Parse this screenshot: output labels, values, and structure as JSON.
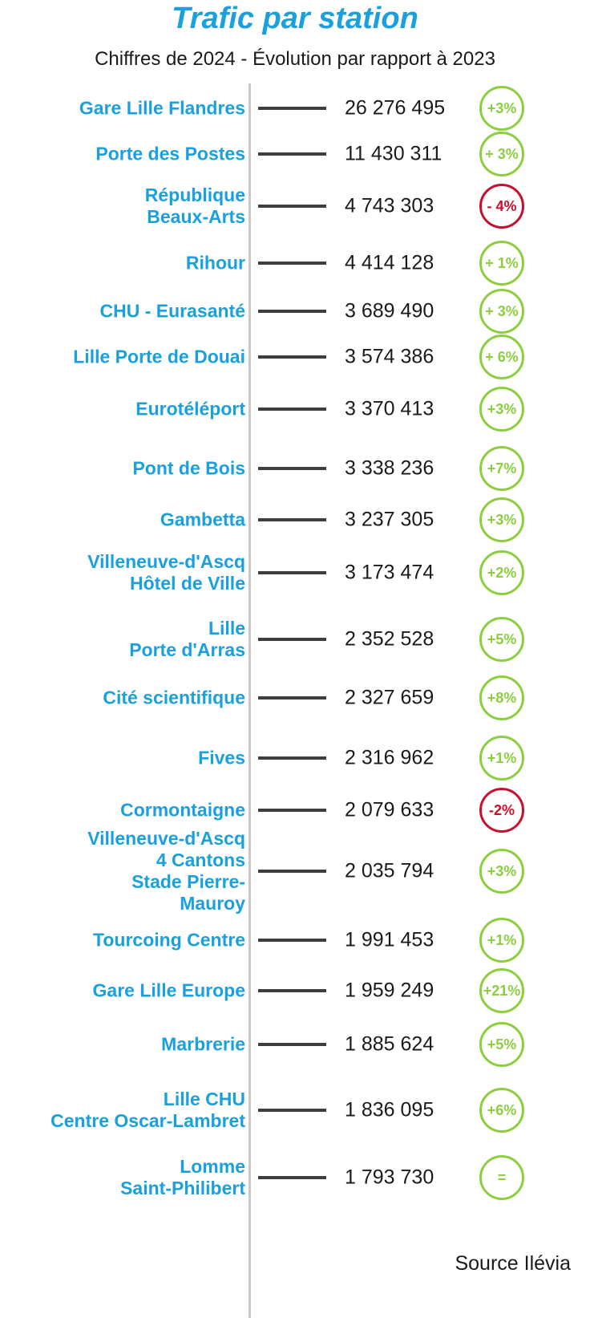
{
  "title": "Trafic par station",
  "subtitle": "Chiffres de 2024 - Évolution par rapport à 2023",
  "source": "Source Ilévia",
  "colors": {
    "title": "#1aa0dd",
    "positive": "#8ccf3e",
    "negative": "#c8102e",
    "dash": "#3e3e3e"
  },
  "chart_data": {
    "type": "table",
    "title": "Trafic par station",
    "subtitle": "Chiffres de 2024 - Évolution par rapport à 2023",
    "rows": [
      {
        "station": [
          "Gare Lille Flandres"
        ],
        "value": "26 276 495",
        "change": "+3%",
        "trend": "up"
      },
      {
        "station": [
          "Porte des Postes"
        ],
        "value": "11 430 311",
        "change": "+ 3%",
        "trend": "up"
      },
      {
        "station": [
          "République",
          "Beaux-Arts"
        ],
        "value": "4 743 303",
        "change": "- 4%",
        "trend": "down"
      },
      {
        "station": [
          "Rihour"
        ],
        "value": "4 414 128",
        "change": "+ 1%",
        "trend": "up"
      },
      {
        "station": [
          "CHU - Eurasanté"
        ],
        "value": "3 689 490",
        "change": "+ 3%",
        "trend": "up"
      },
      {
        "station": [
          "Lille Porte de Douai"
        ],
        "value": "3 574 386",
        "change": "+ 6%",
        "trend": "up"
      },
      {
        "station": [
          "Eurotéléport"
        ],
        "value": "3 370 413",
        "change": "+3%",
        "trend": "up"
      },
      {
        "station": [
          "Pont de Bois"
        ],
        "value": "3 338 236",
        "change": "+7%",
        "trend": "up"
      },
      {
        "station": [
          "Gambetta"
        ],
        "value": "3 237 305",
        "change": "+3%",
        "trend": "up"
      },
      {
        "station": [
          "Villeneuve-d'Ascq",
          "Hôtel de Ville"
        ],
        "value": "3 173 474",
        "change": "+2%",
        "trend": "up"
      },
      {
        "station": [
          "Lille",
          "Porte d'Arras"
        ],
        "value": "2 352 528",
        "change": "+5%",
        "trend": "up"
      },
      {
        "station": [
          "Cité scientifique"
        ],
        "value": "2 327 659",
        "change": "+8%",
        "trend": "up"
      },
      {
        "station": [
          "Fives"
        ],
        "value": "2 316 962",
        "change": "+1%",
        "trend": "up"
      },
      {
        "station": [
          "Cormontaigne"
        ],
        "value": "2 079 633",
        "change": "-2%",
        "trend": "down"
      },
      {
        "station": [
          "Villeneuve-d'Ascq",
          "4 Cantons",
          "Stade Pierre-",
          "Mauroy"
        ],
        "value": "2 035 794",
        "change": "+3%",
        "trend": "up"
      },
      {
        "station": [
          "Tourcoing Centre"
        ],
        "value": "1 991 453",
        "change": "+1%",
        "trend": "up"
      },
      {
        "station": [
          "Gare Lille Europe"
        ],
        "value": "1 959 249",
        "change": "+21%",
        "trend": "up"
      },
      {
        "station": [
          "Marbrerie"
        ],
        "value": "1 885 624",
        "change": "+5%",
        "trend": "up"
      },
      {
        "station": [
          "Lille CHU",
          "Centre Oscar-Lambret"
        ],
        "value": "1 836 095",
        "change": "+6%",
        "trend": "up"
      },
      {
        "station": [
          "Lomme",
          "Saint-Philibert"
        ],
        "value": "1 793 730",
        "change": "=",
        "trend": "flat"
      }
    ]
  }
}
